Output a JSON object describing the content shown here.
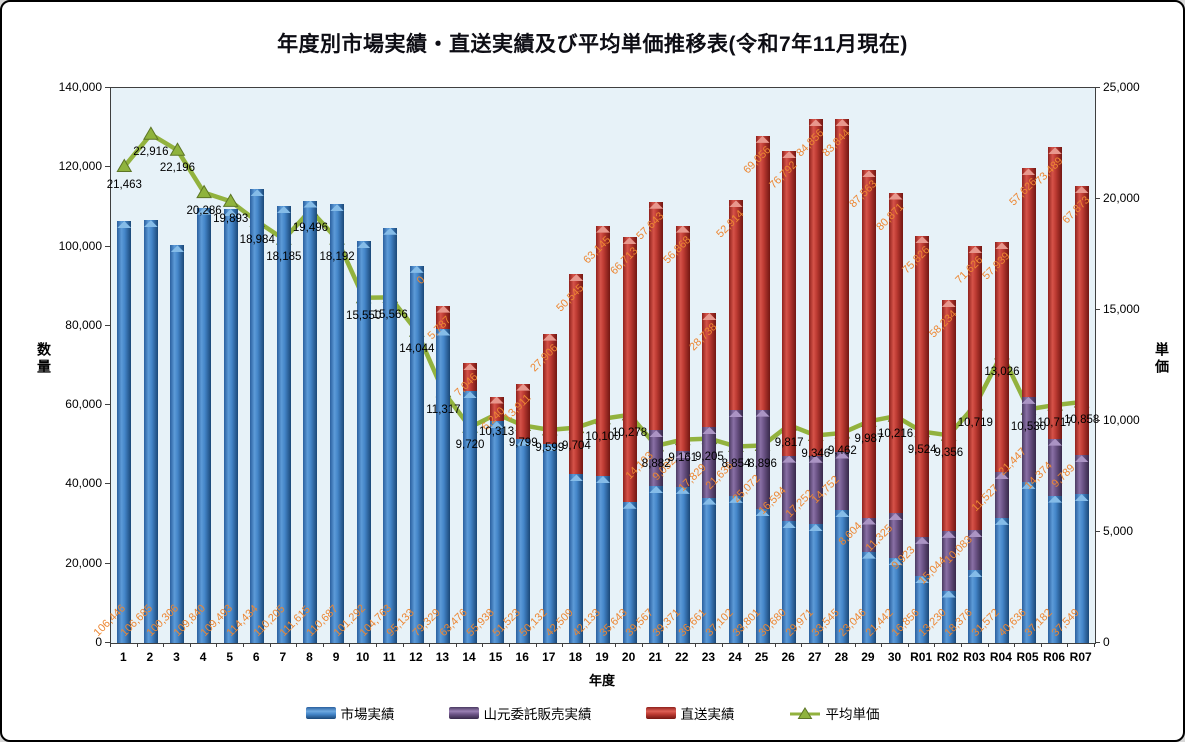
{
  "chart_data": {
    "type": "bar",
    "subtype": "stacked-bars-with-line",
    "title": "年度別市場実績・直送実績及び平均単価推移表(令和7年11月現在)",
    "categories": [
      "1",
      "2",
      "3",
      "4",
      "5",
      "6",
      "7",
      "8",
      "9",
      "10",
      "11",
      "12",
      "13",
      "14",
      "15",
      "16",
      "17",
      "18",
      "19",
      "20",
      "21",
      "22",
      "23",
      "24",
      "25",
      "26",
      "27",
      "28",
      "29",
      "30",
      "R01",
      "R02",
      "R03",
      "R04",
      "R05",
      "R06",
      "R07"
    ],
    "series": [
      {
        "key": "market",
        "name": "市場実績",
        "color": "#4486c9",
        "label_placement": "inside-base-rotated",
        "values": [
          106446,
          106685,
          100306,
          109840,
          109493,
          114434,
          110205,
          111615,
          110687,
          101292,
          104763,
          95133,
          79329,
          63476,
          55938,
          51523,
          50132,
          42509,
          42133,
          35643,
          39567,
          39371,
          36661,
          37102,
          33801,
          30680,
          29971,
          33545,
          23046,
          21442,
          16856,
          13230,
          18376,
          31572,
          40636,
          37182,
          37549
        ]
      },
      {
        "key": "consignment",
        "name": "山元委託販売実績",
        "color": "#6d5588",
        "label_placement": "inside-base-rotated",
        "values": [
          null,
          null,
          null,
          null,
          null,
          null,
          null,
          null,
          null,
          null,
          null,
          null,
          null,
          null,
          null,
          null,
          null,
          null,
          null,
          null,
          14103,
          9032,
          17829,
          21636,
          25072,
          16594,
          17252,
          14752,
          8604,
          11325,
          9923,
          15044,
          10083,
          11527,
          21447,
          14374,
          9789
        ]
      },
      {
        "key": "direct",
        "name": "直送実績",
        "color": "#bc3a32",
        "label_placement": "inside-end-rotated",
        "values": [
          null,
          null,
          null,
          null,
          null,
          null,
          null,
          null,
          null,
          null,
          null,
          0,
          5787,
          7046,
          6240,
          13911,
          27906,
          50545,
          63145,
          66713,
          57643,
          56868,
          28738,
          52914,
          69056,
          76792,
          84856,
          83844,
          87563,
          80871,
          75826,
          58234,
          71626,
          57939,
          57626,
          73489,
          67873
        ]
      }
    ],
    "line_series": {
      "key": "avg_price",
      "name": "平均単価",
      "color": "#92b23e",
      "marker": "triangle",
      "axis": "right",
      "values": [
        21463,
        22916,
        22196,
        20286,
        19893,
        18984,
        18185,
        19496,
        18192,
        15550,
        15566,
        14044,
        11317,
        9720,
        10313,
        9799,
        9599,
        9704,
        10100,
        10278,
        8882,
        9161,
        9205,
        8854,
        8896,
        9817,
        9346,
        9462,
        9987,
        10216,
        9524,
        9356,
        10719,
        13026,
        10530,
        10717,
        10858
      ]
    },
    "axes": {
      "x": {
        "label": "年度"
      },
      "y_left": {
        "label": "数量",
        "min": 0,
        "max": 140000,
        "step": 20000
      },
      "y_right": {
        "label": "単価",
        "min": 0,
        "max": 25000,
        "step": 5000
      }
    },
    "label_colors": {
      "bar_labels": "#ed8733",
      "line_labels": "#000000"
    },
    "plot_background": "#e7f2f8",
    "gridlines": false,
    "legend_position": "bottom"
  }
}
